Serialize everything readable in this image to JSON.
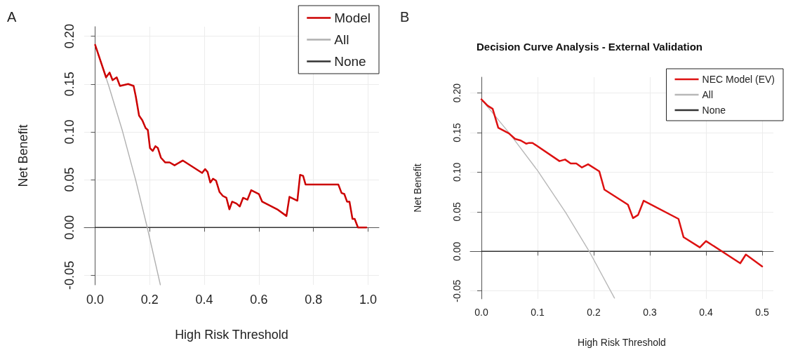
{
  "chart_data": [
    {
      "type": "line",
      "annotations": [
        "A"
      ],
      "xlabel": "High Risk Threshold",
      "ylabel": "Net Benefit",
      "xlim": [
        -0.04,
        1.04
      ],
      "ylim": [
        -0.06,
        0.21
      ],
      "xticks": [
        {
          "value": 0,
          "label": "0.0"
        },
        {
          "value": 0.2,
          "label": "0.2"
        },
        {
          "value": 0.4,
          "label": "0.4"
        },
        {
          "value": 0.6,
          "label": "0.6"
        },
        {
          "value": 0.8,
          "label": "0.8"
        },
        {
          "value": 1,
          "label": "1.0"
        }
      ],
      "yticks": [
        {
          "value": -0.05,
          "label": "-0.05"
        },
        {
          "value": 0,
          "label": "0.00"
        },
        {
          "value": 0.05,
          "label": "0.05"
        },
        {
          "value": 0.1,
          "label": "0.10"
        },
        {
          "value": 0.15,
          "label": "0.15"
        },
        {
          "value": 0.2,
          "label": "0.20"
        }
      ],
      "grid": true,
      "legend": "top right",
      "marker": "none",
      "line_style": "solid",
      "series": [
        {
          "name": "Model",
          "color": "#cc0000",
          "x": [
            0,
            0.04,
            0.053,
            0.064,
            0.079,
            0.091,
            0.121,
            0.141,
            0.149,
            0.161,
            0.173,
            0.185,
            0.193,
            0.201,
            0.211,
            0.221,
            0.23,
            0.241,
            0.257,
            0.273,
            0.291,
            0.321,
            0.392,
            0.403,
            0.412,
            0.422,
            0.432,
            0.443,
            0.456,
            0.468,
            0.481,
            0.492,
            0.502,
            0.518,
            0.53,
            0.542,
            0.558,
            0.572,
            0.6,
            0.612,
            0.667,
            0.701,
            0.712,
            0.741,
            0.751,
            0.762,
            0.771,
            0.891,
            0.903,
            0.913,
            0.923,
            0.932,
            0.943,
            0.951,
            0.963,
            0.994
          ],
          "values": [
            0.191,
            0.157,
            0.162,
            0.154,
            0.157,
            0.148,
            0.15,
            0.148,
            0.137,
            0.117,
            0.112,
            0.104,
            0.102,
            0.083,
            0.08,
            0.085,
            0.083,
            0.073,
            0.068,
            0.068,
            0.065,
            0.07,
            0.057,
            0.061,
            0.058,
            0.047,
            0.051,
            0.049,
            0.037,
            0.033,
            0.031,
            0.019,
            0.027,
            0.025,
            0.022,
            0.031,
            0.029,
            0.039,
            0.035,
            0.027,
            0.019,
            0.012,
            0.032,
            0.028,
            0.055,
            0.054,
            0.045,
            0.045,
            0.036,
            0.035,
            0.027,
            0.027,
            0.009,
            0.009,
            0,
            0
          ]
        },
        {
          "name": "All",
          "color": "#b0b0b0",
          "x": [
            0,
            0.05,
            0.1,
            0.15,
            0.191,
            0.239
          ],
          "values": [
            0.191,
            0.148,
            0.101,
            0.048,
            0,
            -0.06
          ]
        },
        {
          "name": "None",
          "color": "#333333",
          "x": [
            0,
            0.994
          ],
          "values": [
            0,
            0
          ]
        }
      ]
    },
    {
      "type": "line",
      "title": "Decision Curve Analysis - External Validation",
      "annotations": [
        "B"
      ],
      "xlabel": "High Risk Threshold",
      "ylabel": "Net Benefit",
      "xlim": [
        -0.02,
        0.52
      ],
      "ylim": [
        -0.06,
        0.22
      ],
      "xticks": [
        {
          "value": 0,
          "label": "0.0"
        },
        {
          "value": 0.1,
          "label": "0.1"
        },
        {
          "value": 0.2,
          "label": "0.2"
        },
        {
          "value": 0.3,
          "label": "0.3"
        },
        {
          "value": 0.4,
          "label": "0.4"
        },
        {
          "value": 0.5,
          "label": "0.5"
        }
      ],
      "yticks": [
        {
          "value": -0.05,
          "label": "-0.05"
        },
        {
          "value": 0,
          "label": "0.00"
        },
        {
          "value": 0.05,
          "label": "0.05"
        },
        {
          "value": 0.1,
          "label": "0.10"
        },
        {
          "value": 0.15,
          "label": "0.15"
        },
        {
          "value": 0.2,
          "label": "0.20"
        }
      ],
      "grid": true,
      "legend": "top right",
      "marker": "none",
      "line_style": "solid",
      "series": [
        {
          "name": "NEC Model (EV)",
          "color": "#dd1111",
          "x": [
            0,
            0.011,
            0.02,
            0.03,
            0.049,
            0.06,
            0.07,
            0.08,
            0.085,
            0.091,
            0.139,
            0.149,
            0.159,
            0.169,
            0.179,
            0.19,
            0.21,
            0.219,
            0.261,
            0.27,
            0.279,
            0.289,
            0.351,
            0.36,
            0.389,
            0.4,
            0.461,
            0.471,
            0.5
          ],
          "values": [
            0.192,
            0.184,
            0.18,
            0.156,
            0.149,
            0.142,
            0.14,
            0.136,
            0.137,
            0.137,
            0.114,
            0.116,
            0.111,
            0.111,
            0.106,
            0.11,
            0.101,
            0.078,
            0.059,
            0.042,
            0.046,
            0.064,
            0.041,
            0.018,
            0.005,
            0.013,
            -0.015,
            -0.004,
            -0.019
          ]
        },
        {
          "name": "All",
          "color": "#b8b8b8",
          "x": [
            0,
            0.05,
            0.1,
            0.15,
            0.192,
            0.237
          ],
          "values": [
            0.192,
            0.149,
            0.102,
            0.049,
            0,
            -0.059
          ]
        },
        {
          "name": "None",
          "color": "#333333",
          "x": [
            0,
            0.5
          ],
          "values": [
            0,
            0
          ]
        }
      ]
    }
  ]
}
